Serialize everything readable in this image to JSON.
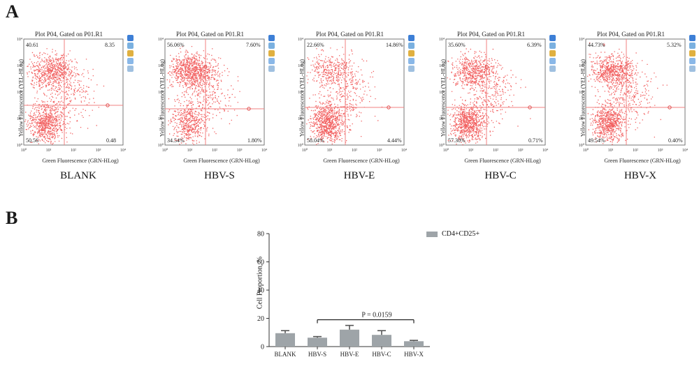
{
  "panel_a_letter": "A",
  "panel_b_letter": "B",
  "flow_common": {
    "plot_title": "Plot P04, Gated on P01.R1",
    "y_axis_label": "Yellow Fluorescence (YEL-HLog)",
    "x_axis_label": "Green Fluorescence (GRN-HLog)",
    "ticks": [
      "10⁰",
      "10¹",
      "10²",
      "10³",
      "10⁴"
    ]
  },
  "flow_plots": [
    {
      "name": "BLANK",
      "q_ul": "40.61",
      "q_ur": "8.35",
      "q_ll": "50.56",
      "q_lr": "0.48"
    },
    {
      "name": "HBV-S",
      "q_ul": "56.06%",
      "q_ur": "7.60%",
      "q_ll": "34.54%",
      "q_lr": "1.80%"
    },
    {
      "name": "HBV-E",
      "q_ul": "22.66%",
      "q_ur": "14.86%",
      "q_ll": "58.04%",
      "q_lr": "4.44%"
    },
    {
      "name": "HBV-C",
      "q_ul": "35.60%",
      "q_ur": "6.39%",
      "q_ll": "57.30%",
      "q_lr": "0.71%"
    },
    {
      "name": "HBV-X",
      "q_ul": "44.73%",
      "q_ur": "5.32%",
      "q_ll": "49.54%",
      "q_lr": "0.40%"
    }
  ],
  "chart_data": {
    "type": "bar",
    "categories": [
      "BLANK",
      "HBV-S",
      "HBV-E",
      "HBV-C",
      "HBV-X"
    ],
    "series": [
      {
        "name": "CD4+CD25+",
        "values": [
          9.5,
          6.3,
          12.0,
          8.3,
          3.8
        ],
        "errors": [
          1.8,
          0.8,
          3.0,
          3.0,
          0.6
        ]
      }
    ],
    "ylabel": "Cell Proportion, %",
    "xlabel": "",
    "ylim": [
      0,
      80
    ],
    "yticks": [
      0,
      20,
      40,
      60,
      80
    ],
    "annotation": "P = 0.0159",
    "annotation_span": [
      "HBV-S",
      "HBV-X"
    ],
    "bar_color": "#9ea4a8",
    "legend_position": "top-right"
  }
}
